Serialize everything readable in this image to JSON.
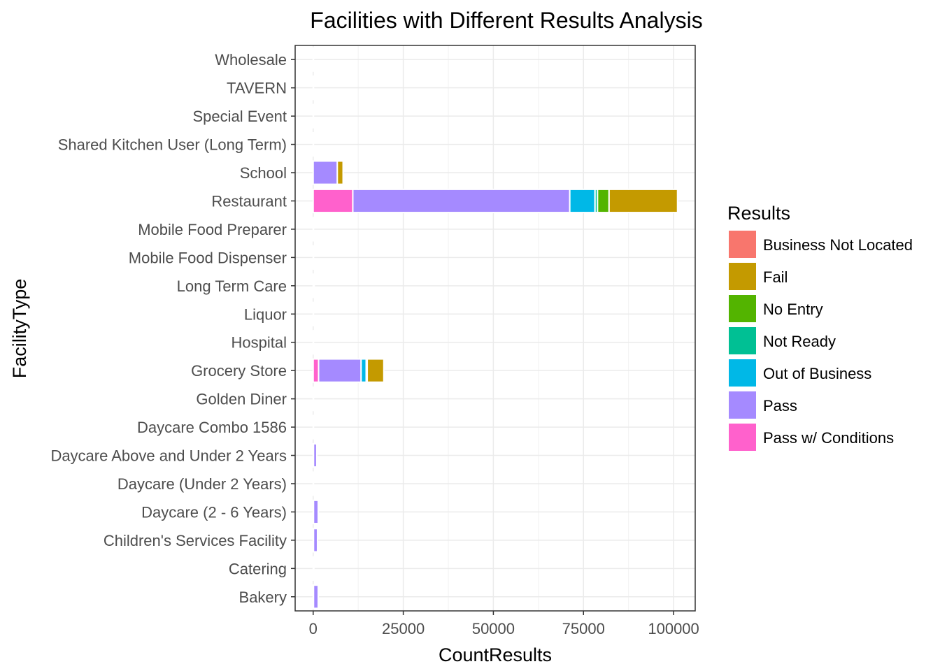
{
  "chart_data": {
    "type": "bar",
    "orientation": "horizontal",
    "stacked": true,
    "title": "Facilities with Different Results Analysis",
    "xlabel": "CountResults",
    "ylabel": "FacilityType",
    "xlim": [
      -5000,
      106000
    ],
    "xticks": [
      0,
      25000,
      50000,
      75000,
      100000
    ],
    "grid": true,
    "legend_position": "right",
    "legend_title": "Results",
    "categories": [
      "Bakery",
      "Catering",
      "Children's Services Facility",
      "Daycare (2 - 6 Years)",
      "Daycare (Under 2 Years)",
      "Daycare Above and Under 2 Years",
      "Daycare Combo 1586",
      "Golden Diner",
      "Grocery Store",
      "Hospital",
      "Liquor",
      "Long Term Care",
      "Mobile Food Dispenser",
      "Mobile Food Preparer",
      "Restaurant",
      "School",
      "Shared Kitchen User (Long Term)",
      "Special Event",
      "TAVERN",
      "Wholesale"
    ],
    "series": [
      {
        "name": "Pass w/ Conditions",
        "color": "#FF61CC",
        "values": [
          100,
          0,
          100,
          100,
          0,
          100,
          0,
          0,
          1500,
          0,
          0,
          0,
          0,
          0,
          11000,
          0,
          0,
          0,
          0,
          0
        ]
      },
      {
        "name": "Pass",
        "color": "#A58AFF",
        "values": [
          1300,
          200,
          1100,
          1300,
          50,
          900,
          30,
          10,
          11800,
          20,
          30,
          300,
          20,
          20,
          60200,
          6700,
          20,
          20,
          10,
          20
        ]
      },
      {
        "name": "Out of Business",
        "color": "#00B8E7",
        "values": [
          0,
          0,
          0,
          0,
          0,
          0,
          0,
          0,
          1400,
          0,
          0,
          0,
          0,
          0,
          7000,
          0,
          0,
          0,
          0,
          0
        ]
      },
      {
        "name": "Not Ready",
        "color": "#00C094",
        "values": [
          0,
          0,
          0,
          0,
          0,
          0,
          0,
          0,
          300,
          0,
          0,
          0,
          0,
          0,
          700,
          0,
          0,
          0,
          0,
          0
        ]
      },
      {
        "name": "No Entry",
        "color": "#53B400",
        "values": [
          0,
          0,
          0,
          0,
          0,
          0,
          0,
          0,
          0,
          0,
          0,
          0,
          0,
          0,
          3200,
          0,
          0,
          0,
          0,
          0
        ]
      },
      {
        "name": "Fail",
        "color": "#C49A00",
        "values": [
          0,
          0,
          0,
          0,
          0,
          0,
          0,
          0,
          4600,
          0,
          0,
          0,
          0,
          0,
          19000,
          1600,
          0,
          0,
          0,
          0
        ]
      },
      {
        "name": "Business Not Located",
        "color": "#F8766D",
        "values": [
          0,
          0,
          0,
          0,
          0,
          0,
          0,
          0,
          0,
          0,
          0,
          0,
          0,
          0,
          0,
          0,
          0,
          0,
          0,
          0
        ]
      }
    ],
    "legend_order": [
      "Business Not Located",
      "Fail",
      "No Entry",
      "Not Ready",
      "Out of Business",
      "Pass",
      "Pass w/ Conditions"
    ]
  }
}
